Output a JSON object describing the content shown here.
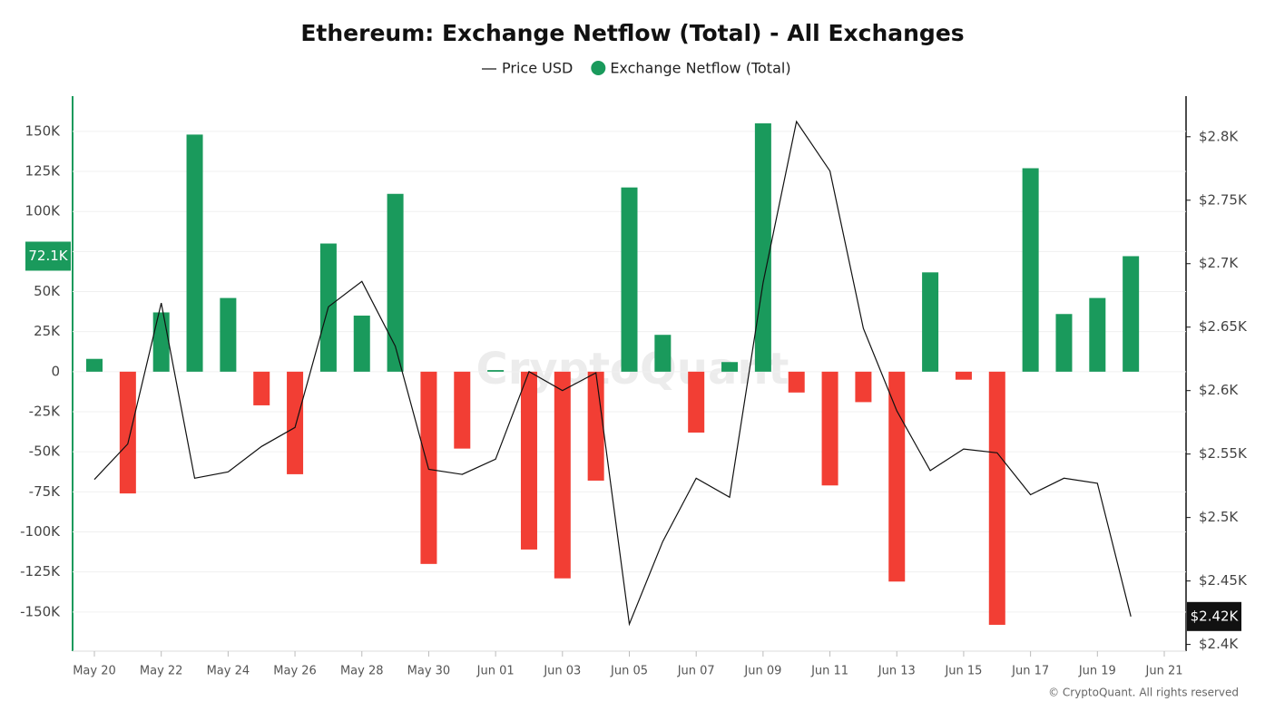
{
  "chart_data": {
    "type": "bar_line",
    "title": "Ethereum: Exchange Netflow (Total) - All Exchanges",
    "watermark": "CryptoQuant",
    "copyright": "© CryptoQuant. All rights reserved",
    "categories": [
      "May 20",
      null,
      "May 22",
      null,
      "May 24",
      null,
      "May 26",
      null,
      "May 28",
      null,
      "May 30",
      null,
      "Jun 01",
      null,
      "Jun 03",
      null,
      "Jun 05",
      null,
      "Jun 07",
      null,
      "Jun 09",
      null,
      "Jun 11",
      null,
      "Jun 13",
      null,
      "Jun 15",
      null,
      "Jun 17",
      null,
      "Jun 19",
      null,
      "Jun 21"
    ],
    "series": [
      {
        "name": "Price USD",
        "type": "line",
        "axis": "y2",
        "color": "#111111",
        "values": [
          2530,
          2558,
          2669,
          2531,
          2536,
          2556,
          2571,
          2666,
          2686,
          2635,
          2538,
          2534,
          2546,
          2615,
          2600,
          2614,
          2416,
          2481,
          2531,
          2516,
          2685,
          2812,
          2773,
          2649,
          2584,
          2537,
          2554,
          2551,
          2518,
          2531,
          2527,
          2422,
          null
        ],
        "value_labels": [
          null,
          null,
          null,
          null,
          null,
          null,
          null,
          null,
          null,
          null,
          null,
          null,
          null,
          null,
          null,
          null,
          null,
          null,
          null,
          null,
          null,
          null,
          null,
          null,
          null,
          null,
          null,
          null,
          null,
          null,
          null,
          "$2.42K",
          null
        ]
      },
      {
        "name": "Exchange Netflow (Total)",
        "type": "bar",
        "color": "#1a9a5c",
        "negative_color": "#f23e34",
        "values": [
          8000,
          -76000,
          37000,
          148000,
          46000,
          -21000,
          -64000,
          80000,
          35000,
          111000,
          -120000,
          -48000,
          1000,
          -111000,
          -129000,
          -68000,
          115000,
          23000,
          -38000,
          6000,
          155000,
          -13000,
          -71000,
          -19000,
          -131000,
          62000,
          -5000,
          -158000,
          127000,
          36000,
          46000,
          72100,
          null
        ],
        "value_labels": [
          null,
          null,
          null,
          null,
          null,
          null,
          null,
          null,
          null,
          null,
          null,
          null,
          null,
          null,
          null,
          null,
          null,
          null,
          null,
          null,
          null,
          null,
          null,
          null,
          null,
          null,
          null,
          null,
          null,
          null,
          null,
          "72.1K",
          null
        ]
      }
    ],
    "ylim": [
      -175000,
      172000
    ],
    "yticks": [
      {
        "value": -150000,
        "label": "-150K"
      },
      {
        "value": -125000,
        "label": "-125K"
      },
      {
        "value": -100000,
        "label": "-100K"
      },
      {
        "value": -75000,
        "label": "-75K"
      },
      {
        "value": -50000,
        "label": "-50K"
      },
      {
        "value": -25000,
        "label": "-25K"
      },
      0,
      {
        "value": 25000,
        "label": "25K"
      },
      {
        "value": 50000,
        "label": "50K"
      },
      {
        "value": 75000,
        "label": "75K"
      },
      {
        "value": 100000,
        "label": "100K"
      },
      {
        "value": 125000,
        "label": "125K"
      },
      {
        "value": 150000,
        "label": "150K"
      }
    ],
    "y2lim": [
      2394,
      2832
    ],
    "y2ticks": [
      {
        "value": 2400,
        "label": "$2.4K"
      },
      {
        "value": 2450,
        "label": "$2.45K"
      },
      {
        "value": 2500,
        "label": "$2.5K"
      },
      {
        "value": 2550,
        "label": "$2.55K"
      },
      {
        "value": 2600,
        "label": "$2.6K"
      },
      {
        "value": 2650,
        "label": "$2.65K"
      },
      {
        "value": 2700,
        "label": "$2.7K"
      },
      {
        "value": 2750,
        "label": "$2.75K"
      },
      {
        "value": 2800,
        "label": "$2.8K"
      }
    ],
    "grid": true
  }
}
